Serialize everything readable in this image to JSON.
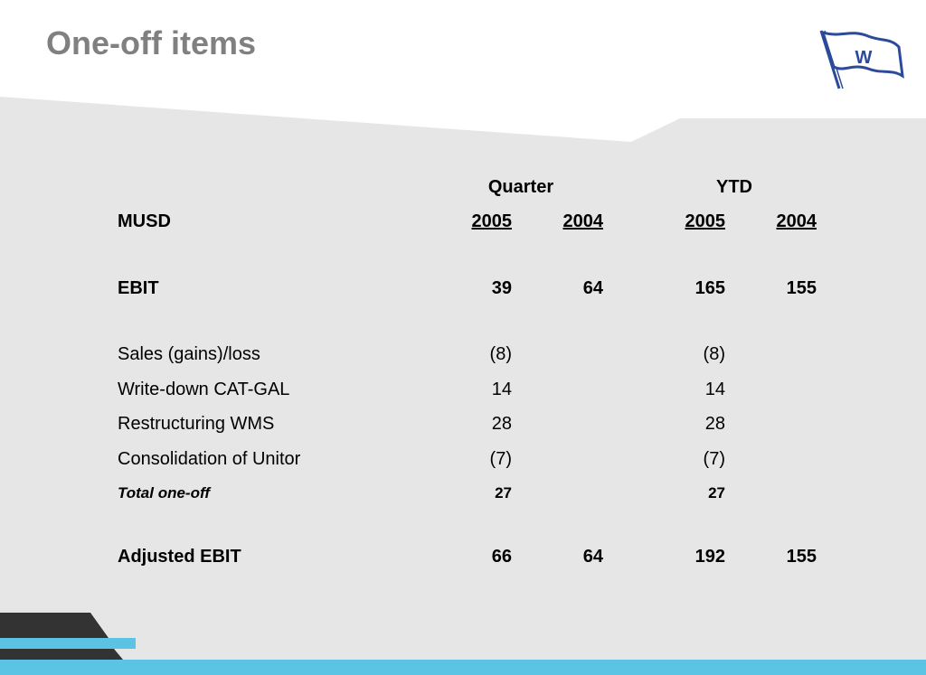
{
  "title": "One-off items",
  "logo_letter": "W",
  "colors": {
    "title": "#808080",
    "panel": "#e6e6e6",
    "accent_blue": "#5bc3e4",
    "dark": "#303030",
    "logo_blue": "#2c4a9a"
  },
  "table": {
    "group_headers": {
      "quarter": "Quarter",
      "ytd": "YTD"
    },
    "unit_label": "MUSD",
    "years": {
      "q_2005": "2005",
      "q_2004": "2004",
      "ytd_2005": "2005",
      "ytd_2004": "2004"
    },
    "rows": [
      {
        "label": "EBIT",
        "q2005": "39",
        "q2004": "64",
        "ytd2005": "165",
        "ytd2004": "155"
      },
      {
        "label": "Sales (gains)/loss",
        "q2005": "(8)",
        "q2004": "",
        "ytd2005": "(8)",
        "ytd2004": ""
      },
      {
        "label": "Write-down CAT-GAL",
        "q2005": "14",
        "q2004": "",
        "ytd2005": "14",
        "ytd2004": ""
      },
      {
        "label": "Restructuring WMS",
        "q2005": "28",
        "q2004": "",
        "ytd2005": "28",
        "ytd2004": ""
      },
      {
        "label": "Consolidation of Unitor",
        "q2005": "(7)",
        "q2004": "",
        "ytd2005": "(7)",
        "ytd2004": ""
      },
      {
        "label": "Total one-off",
        "q2005": "27",
        "q2004": "",
        "ytd2005": "27",
        "ytd2004": ""
      },
      {
        "label": "Adjusted EBIT",
        "q2005": "66",
        "q2004": "64",
        "ytd2005": "192",
        "ytd2004": "155"
      }
    ]
  }
}
